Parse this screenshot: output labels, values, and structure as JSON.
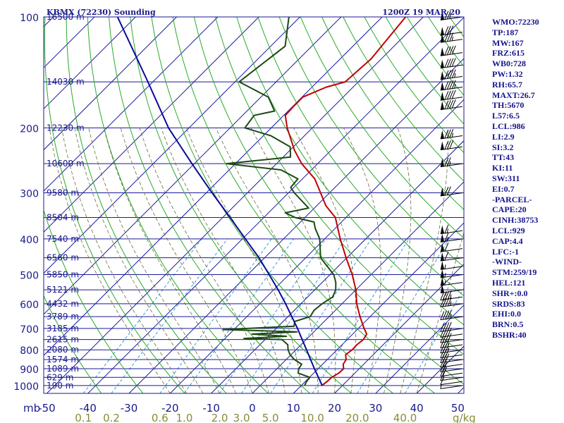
{
  "header": {
    "station": "KBMX (72230) Sounding",
    "time": "1200Z 19 MAR 20"
  },
  "indices": [
    "WMO:72230",
    "TP:187",
    "MW:167",
    "FRZ:615",
    "WB0:728",
    "PW:1.32",
    "RH:65.7",
    "MAXT:26.7",
    "TH:5670",
    "L57:6.5",
    "LCL:986",
    "LI:2.9",
    "SI:3.2",
    "TT:43",
    "KI:11",
    "SW:311",
    "EI:0.7",
    "-PARCEL-",
    "CAPE:20",
    "CINH:38753",
    "LCL:929",
    "CAP:4.4",
    "LFC:-1",
    "-WIND-",
    "STM:259/19",
    "HEL:121",
    "SHR+:0.0",
    "SRDS:83",
    "EHI:0.0",
    "BRN:0.5",
    "BSHR:40"
  ],
  "chart_data": {
    "type": "line",
    "title": "KBMX (72230) Sounding",
    "pressure_labels": [
      {
        "p": 100,
        "label": "100"
      },
      {
        "p": 200,
        "label": "200"
      },
      {
        "p": 300,
        "label": "300"
      },
      {
        "p": 400,
        "label": "400"
      },
      {
        "p": 500,
        "label": "500"
      },
      {
        "p": 600,
        "label": "600"
      },
      {
        "p": 700,
        "label": "700"
      },
      {
        "p": 800,
        "label": "800"
      },
      {
        "p": 900,
        "label": "900"
      },
      {
        "p": 1000,
        "label": "1000"
      }
    ],
    "pressure_unit": "mb",
    "height_labels": [
      {
        "p": 100,
        "label": "16500 m"
      },
      {
        "p": 150,
        "label": "14030 m"
      },
      {
        "p": 200,
        "label": "12230 m"
      },
      {
        "p": 250,
        "label": "10600 m"
      },
      {
        "p": 300,
        "label": "9580 m"
      },
      {
        "p": 350,
        "label": "8504 m"
      },
      {
        "p": 400,
        "label": "7540 m"
      },
      {
        "p": 450,
        "label": "6560 m"
      },
      {
        "p": 500,
        "label": "5850 m"
      },
      {
        "p": 550,
        "label": "5121 m"
      },
      {
        "p": 600,
        "label": "4432 m"
      },
      {
        "p": 650,
        "label": "3789 m"
      },
      {
        "p": 700,
        "label": "3185 m"
      },
      {
        "p": 750,
        "label": "2615 m"
      },
      {
        "p": 800,
        "label": "2080 m"
      },
      {
        "p": 850,
        "label": "1574 m"
      },
      {
        "p": 900,
        "label": "1089 m"
      },
      {
        "p": 950,
        "label": "629 m"
      },
      {
        "p": 1000,
        "label": "190 m"
      }
    ],
    "temp_labels": [
      "-50",
      "-40",
      "-30",
      "-20",
      "-10",
      "0",
      "10",
      "20",
      "30",
      "40",
      "50"
    ],
    "temp_values": [
      -50,
      -40,
      -30,
      -20,
      -10,
      0,
      10,
      20,
      30,
      40,
      50
    ],
    "mixing_ratio_labels": [
      "0.1",
      "0.2",
      "0.6",
      "1.0",
      "2.0",
      "3.0",
      "5.0",
      "10.0",
      "20.0",
      "40.0"
    ],
    "mixing_ratio_values": [
      0.1,
      0.2,
      0.6,
      1.0,
      2.0,
      3.0,
      5.0,
      10.0,
      20.0,
      40.0
    ],
    "mixing_ratio_unit": "g/kg",
    "series": [
      {
        "color": "#c00000",
        "points": [
          [
            1000,
            15.0
          ],
          [
            975,
            15.3
          ],
          [
            950,
            15.4
          ],
          [
            925,
            16.1
          ],
          [
            900,
            16.2
          ],
          [
            875,
            15.0
          ],
          [
            850,
            14.6
          ],
          [
            825,
            13.3
          ],
          [
            800,
            13.7
          ],
          [
            775,
            13.6
          ],
          [
            750,
            13.9
          ],
          [
            725,
            13.4
          ],
          [
            700,
            11.4
          ],
          [
            650,
            7.5
          ],
          [
            600,
            3.6
          ],
          [
            550,
            0.0
          ],
          [
            500,
            -4.6
          ],
          [
            450,
            -10.2
          ],
          [
            400,
            -16.2
          ],
          [
            350,
            -22.6
          ],
          [
            325,
            -27.8
          ],
          [
            300,
            -32.2
          ],
          [
            275,
            -37.0
          ],
          [
            250,
            -43.9
          ],
          [
            230,
            -48.9
          ],
          [
            200,
            -56.1
          ],
          [
            185,
            -59.6
          ],
          [
            175,
            -59.8
          ],
          [
            165,
            -59.8
          ],
          [
            155,
            -56.5
          ],
          [
            150,
            -53.2
          ],
          [
            130,
            -52.5
          ],
          [
            100,
            -54.3
          ]
        ]
      },
      {
        "color": "#1c4a12",
        "points": [
          [
            1000,
            10.8
          ],
          [
            975,
            10.3
          ],
          [
            950,
            10.1
          ],
          [
            925,
            6.2
          ],
          [
            900,
            5.3
          ],
          [
            875,
            4.9
          ],
          [
            850,
            2.0
          ],
          [
            825,
            -0.2
          ],
          [
            800,
            -1.9
          ],
          [
            775,
            -3.2
          ],
          [
            750,
            -5.9
          ],
          [
            745,
            -15.4
          ],
          [
            735,
            -5.6
          ],
          [
            725,
            -14.5
          ],
          [
            715,
            -4.1
          ],
          [
            705,
            -22.6
          ],
          [
            690,
            -6.2
          ],
          [
            670,
            -7.2
          ],
          [
            650,
            -4.6
          ],
          [
            625,
            -5.2
          ],
          [
            600,
            -4.8
          ],
          [
            575,
            -3.9
          ],
          [
            550,
            -4.9
          ],
          [
            525,
            -6.7
          ],
          [
            500,
            -9.1
          ],
          [
            450,
            -16.4
          ],
          [
            400,
            -21.2
          ],
          [
            375,
            -24.8
          ],
          [
            360,
            -26.7
          ],
          [
            350,
            -32.4
          ],
          [
            340,
            -35.9
          ],
          [
            330,
            -31.4
          ],
          [
            300,
            -38.6
          ],
          [
            290,
            -40.8
          ],
          [
            275,
            -41.1
          ],
          [
            260,
            -47.4
          ],
          [
            250,
            -62.2
          ],
          [
            240,
            -48.2
          ],
          [
            225,
            -50.8
          ],
          [
            210,
            -58.2
          ],
          [
            200,
            -66.4
          ],
          [
            185,
            -67.2
          ],
          [
            180,
            -63.3
          ],
          [
            165,
            -68.2
          ],
          [
            150,
            -79.0
          ],
          [
            120,
            -76.5
          ],
          [
            100,
            -82.7
          ]
        ]
      },
      {
        "color": "#0a0a9a",
        "points": [
          [
            1000,
            15.1
          ],
          [
            900,
            9.1
          ],
          [
            800,
            2.6
          ],
          [
            700,
            -4.8
          ],
          [
            600,
            -13.7
          ],
          [
            550,
            -18.9
          ],
          [
            500,
            -24.8
          ],
          [
            450,
            -31.4
          ],
          [
            400,
            -39.3
          ],
          [
            350,
            -48.2
          ],
          [
            300,
            -58.6
          ],
          [
            250,
            -70.6
          ],
          [
            200,
            -85.0
          ],
          [
            150,
            -101.2
          ],
          [
            100,
            -124.4
          ]
        ]
      }
    ],
    "wind_barbs": [
      {
        "p": 1000,
        "spd": 5
      },
      {
        "p": 975,
        "spd": 10
      },
      {
        "p": 950,
        "spd": 15
      },
      {
        "p": 925,
        "spd": 20
      },
      {
        "p": 900,
        "spd": 25
      },
      {
        "p": 875,
        "spd": 25
      },
      {
        "p": 850,
        "spd": 30
      },
      {
        "p": 825,
        "spd": 30
      },
      {
        "p": 800,
        "spd": 35
      },
      {
        "p": 775,
        "spd": 35
      },
      {
        "p": 750,
        "spd": 40
      },
      {
        "p": 725,
        "spd": 40
      },
      {
        "p": 700,
        "spd": 40
      },
      {
        "p": 650,
        "spd": 45
      },
      {
        "p": 600,
        "spd": 45
      },
      {
        "p": 575,
        "spd": 45
      },
      {
        "p": 550,
        "spd": 50
      },
      {
        "p": 525,
        "spd": 55
      },
      {
        "p": 500,
        "spd": 55
      },
      {
        "p": 475,
        "spd": 55
      },
      {
        "p": 450,
        "spd": 60
      },
      {
        "p": 425,
        "spd": 60
      },
      {
        "p": 400,
        "spd": 65
      },
      {
        "p": 380,
        "spd": 65
      },
      {
        "p": 300,
        "spd": 70
      },
      {
        "p": 250,
        "spd": 75
      },
      {
        "p": 225,
        "spd": 80
      },
      {
        "p": 210,
        "spd": 85
      },
      {
        "p": 175,
        "spd": 90
      },
      {
        "p": 165,
        "spd": 90
      },
      {
        "p": 155,
        "spd": 95
      },
      {
        "p": 145,
        "spd": 95
      },
      {
        "p": 135,
        "spd": 90
      },
      {
        "p": 125,
        "spd": 90
      },
      {
        "p": 115,
        "spd": 85
      },
      {
        "p": 110,
        "spd": 80
      },
      {
        "p": 100,
        "spd": 75
      }
    ],
    "colors": {
      "isobar": "#1a1a9a",
      "isotherm": "#1a1a9a",
      "dry_adiabat": "#2aaa2a",
      "moist_adiabat": "#6a6a3a",
      "mixing_ratio": "#3a9ad9",
      "wind": "#000000",
      "axis_text": "#1a1a8a",
      "mixing_text": "#8a8a3a"
    }
  }
}
